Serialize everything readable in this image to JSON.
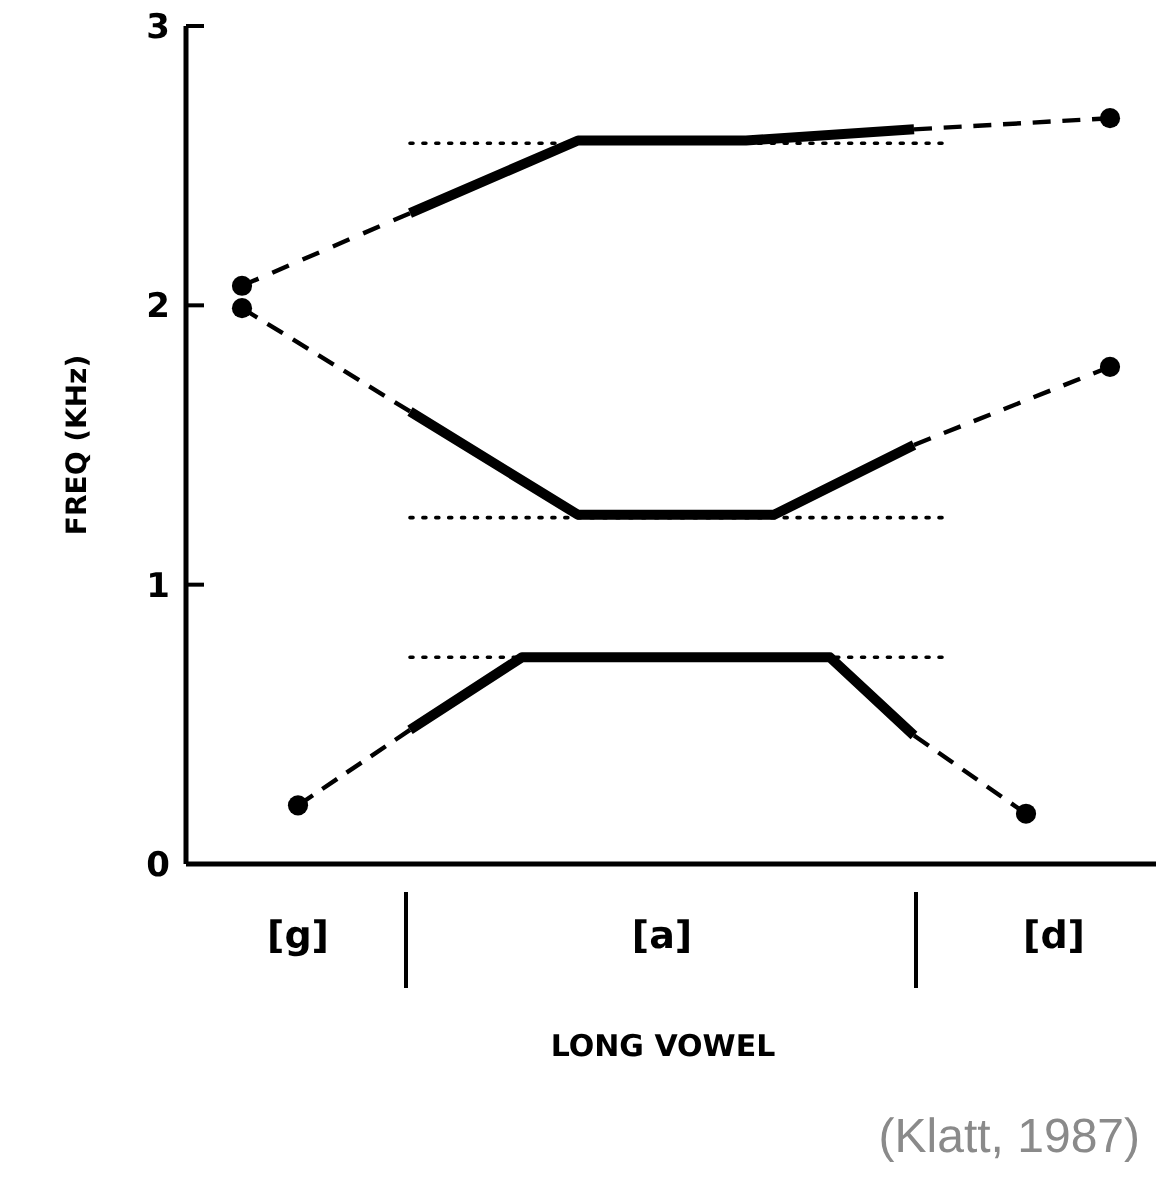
{
  "chart_data": {
    "type": "line",
    "xlabel": "LONG VOWEL",
    "ylabel": "FREQ (KHz)",
    "annotations": [
      "(Klatt, 1987)"
    ],
    "categories": [
      null,
      null,
      null,
      null,
      "[g]",
      null,
      null,
      null,
      null,
      null,
      null,
      null,
      null,
      null,
      null,
      null,
      null,
      "[a]",
      null,
      null,
      null,
      null,
      null,
      null,
      null,
      null,
      null,
      null,
      null,
      null,
      null,
      "[d]",
      null,
      null,
      null
    ],
    "ylim": [
      0,
      3
    ],
    "yticks": [
      0,
      1,
      2,
      3
    ],
    "grid": false,
    "series": [
      {
        "color": "#000000",
        "line_style": "dashed",
        "values": [
          null,
          null,
          2.07,
          null,
          null,
          null,
          null,
          null,
          2.33,
          null,
          null,
          null,
          null,
          null,
          null,
          null,
          null,
          null,
          null,
          null,
          null,
          null,
          null,
          null,
          null,
          null,
          null,
          null,
          null,
          null,
          null,
          null,
          null,
          null,
          null
        ]
      },
      {
        "color": "#000000",
        "line_style": "solid",
        "values": [
          null,
          null,
          null,
          null,
          null,
          null,
          null,
          null,
          2.33,
          null,
          null,
          null,
          null,
          null,
          2.59,
          null,
          null,
          null,
          null,
          null,
          2.59,
          null,
          null,
          null,
          null,
          null,
          2.63,
          null,
          null,
          null,
          null,
          null,
          null,
          null,
          null
        ]
      },
      {
        "color": "#000000",
        "line_style": "dashed",
        "values": [
          null,
          null,
          null,
          null,
          null,
          null,
          null,
          null,
          null,
          null,
          null,
          null,
          null,
          null,
          null,
          null,
          null,
          null,
          null,
          null,
          null,
          null,
          null,
          null,
          null,
          null,
          2.63,
          null,
          null,
          null,
          null,
          null,
          null,
          2.67,
          null
        ]
      },
      {
        "color": "#000000",
        "line_style": "dotted",
        "values": [
          null,
          null,
          null,
          null,
          null,
          null,
          null,
          null,
          2.58,
          null,
          null,
          null,
          null,
          null,
          null,
          null,
          null,
          null,
          null,
          null,
          null,
          null,
          null,
          null,
          null,
          null,
          null,
          2.58,
          null,
          null,
          null,
          null,
          null,
          null,
          null
        ]
      },
      {
        "color": "#000000",
        "line_style": "dashed",
        "values": [
          null,
          null,
          1.99,
          null,
          null,
          null,
          null,
          null,
          1.62,
          null,
          null,
          null,
          null,
          null,
          null,
          null,
          null,
          null,
          null,
          null,
          null,
          null,
          null,
          null,
          null,
          null,
          null,
          null,
          null,
          null,
          null,
          null,
          null,
          null,
          null
        ]
      },
      {
        "color": "#000000",
        "line_style": "solid",
        "values": [
          null,
          null,
          null,
          null,
          null,
          null,
          null,
          null,
          1.62,
          null,
          null,
          null,
          null,
          null,
          1.25,
          null,
          null,
          null,
          null,
          null,
          null,
          1.25,
          null,
          null,
          null,
          null,
          1.5,
          null,
          null,
          null,
          null,
          null,
          null,
          null,
          null
        ]
      },
      {
        "color": "#000000",
        "line_style": "dashed",
        "values": [
          null,
          null,
          null,
          null,
          null,
          null,
          null,
          null,
          null,
          null,
          null,
          null,
          null,
          null,
          null,
          null,
          null,
          null,
          null,
          null,
          null,
          null,
          null,
          null,
          null,
          null,
          1.5,
          null,
          null,
          null,
          null,
          null,
          null,
          1.78,
          null
        ]
      },
      {
        "color": "#000000",
        "line_style": "dotted",
        "values": [
          null,
          null,
          null,
          null,
          null,
          null,
          null,
          null,
          1.24,
          null,
          null,
          null,
          null,
          null,
          null,
          null,
          null,
          null,
          null,
          null,
          null,
          null,
          null,
          null,
          null,
          null,
          null,
          1.24,
          null,
          null,
          null,
          null,
          null,
          null,
          null
        ]
      },
      {
        "color": "#000000",
        "line_style": "dashed",
        "values": [
          null,
          null,
          null,
          null,
          0.21,
          null,
          null,
          null,
          0.48,
          null,
          null,
          null,
          null,
          null,
          null,
          null,
          null,
          null,
          null,
          null,
          null,
          null,
          null,
          null,
          null,
          null,
          null,
          null,
          null,
          null,
          null,
          null,
          null,
          null,
          null
        ]
      },
      {
        "color": "#000000",
        "line_style": "solid",
        "values": [
          null,
          null,
          null,
          null,
          null,
          null,
          null,
          null,
          0.48,
          null,
          null,
          null,
          0.74,
          null,
          null,
          null,
          null,
          null,
          null,
          null,
          null,
          null,
          null,
          0.74,
          null,
          null,
          0.46,
          null,
          null,
          null,
          null,
          null,
          null,
          null,
          null
        ]
      },
      {
        "color": "#000000",
        "line_style": "dashed",
        "values": [
          null,
          null,
          null,
          null,
          null,
          null,
          null,
          null,
          null,
          null,
          null,
          null,
          null,
          null,
          null,
          null,
          null,
          null,
          null,
          null,
          null,
          null,
          null,
          null,
          null,
          null,
          0.46,
          null,
          null,
          null,
          0.18,
          null,
          null,
          null,
          null
        ]
      },
      {
        "color": "#000000",
        "line_style": "dotted",
        "values": [
          null,
          null,
          null,
          null,
          null,
          null,
          null,
          null,
          0.74,
          null,
          null,
          null,
          null,
          null,
          null,
          null,
          null,
          null,
          null,
          null,
          null,
          null,
          null,
          null,
          null,
          null,
          null,
          0.74,
          null,
          null,
          null,
          null,
          null,
          null,
          null
        ]
      },
      {
        "type": "scatter",
        "color": "#000000",
        "marker": "circle",
        "values": [
          null,
          null,
          2.07,
          null,
          0.21,
          null,
          null,
          null,
          null,
          null,
          null,
          null,
          null,
          null,
          null,
          null,
          null,
          null,
          null,
          null,
          null,
          null,
          null,
          null,
          null,
          null,
          null,
          null,
          null,
          null,
          0.18,
          null,
          null,
          2.67,
          null
        ]
      },
      {
        "type": "scatter",
        "color": "#000000",
        "marker": "circle",
        "values": [
          null,
          null,
          1.99,
          null,
          null,
          null,
          null,
          null,
          null,
          null,
          null,
          null,
          null,
          null,
          null,
          null,
          null,
          null,
          null,
          null,
          null,
          null,
          null,
          null,
          null,
          null,
          null,
          null,
          null,
          null,
          null,
          null,
          null,
          1.78,
          null
        ]
      }
    ]
  }
}
